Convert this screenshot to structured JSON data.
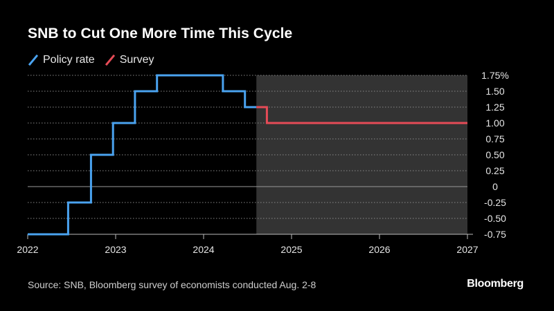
{
  "title": "SNB to Cut One More Time This Cycle",
  "source": "Source: SNB, Bloomberg survey of economists conducted Aug. 2-8",
  "brand": "Bloomberg",
  "colors": {
    "policy": "#4aa3f0",
    "survey": "#e64b57",
    "forecast_shade": "#333333",
    "grid": "#8a8a8a",
    "zero": "#9a9a9a",
    "axis": "#bdbdbd"
  },
  "chart_data": {
    "type": "line",
    "step": true,
    "title": "SNB to Cut One More Time This Cycle",
    "xlabel": "",
    "ylabel": "",
    "xlim": [
      2022.0,
      2027.0
    ],
    "ylim": [
      -0.75,
      1.75
    ],
    "x_ticks": [
      "2022",
      "2023",
      "2024",
      "2025",
      "2026",
      "2027"
    ],
    "y_ticks": [
      {
        "value": 1.75,
        "label": "1.75%"
      },
      {
        "value": 1.5,
        "label": "1.50"
      },
      {
        "value": 1.25,
        "label": "1.25"
      },
      {
        "value": 1.0,
        "label": "1.00"
      },
      {
        "value": 0.75,
        "label": "0.75"
      },
      {
        "value": 0.5,
        "label": "0.50"
      },
      {
        "value": 0.25,
        "label": "0.25"
      },
      {
        "value": 0,
        "label": "0"
      },
      {
        "value": -0.25,
        "label": "-0.25"
      },
      {
        "value": -0.5,
        "label": "-0.50"
      },
      {
        "value": -0.75,
        "label": "-0.75"
      }
    ],
    "forecast_region": {
      "start": 2024.6,
      "end": 2027.0
    },
    "series": [
      {
        "name": "Policy rate",
        "points": [
          {
            "x": 2022.0,
            "y": -0.75
          },
          {
            "x": 2022.46,
            "y": -0.25
          },
          {
            "x": 2022.72,
            "y": 0.5
          },
          {
            "x": 2022.97,
            "y": 1.0
          },
          {
            "x": 2023.22,
            "y": 1.5
          },
          {
            "x": 2023.47,
            "y": 1.75
          },
          {
            "x": 2024.22,
            "y": 1.5
          },
          {
            "x": 2024.47,
            "y": 1.25
          },
          {
            "x": 2024.6,
            "y": 1.25
          }
        ]
      },
      {
        "name": "Survey",
        "points": [
          {
            "x": 2024.6,
            "y": 1.25
          },
          {
            "x": 2024.72,
            "y": 1.0
          },
          {
            "x": 2027.0,
            "y": 1.0
          }
        ]
      }
    ]
  }
}
